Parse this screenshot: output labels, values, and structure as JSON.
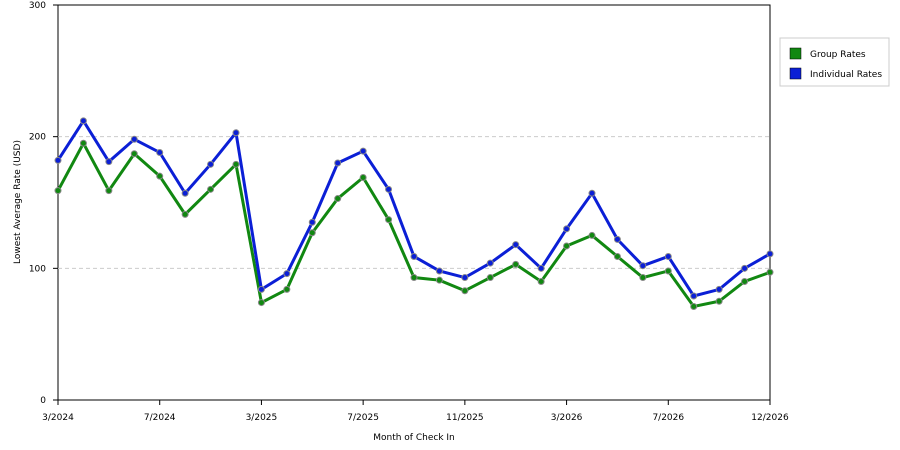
{
  "chart_data": {
    "type": "line",
    "x_label": "Month of Check In",
    "y_label": "Lowest Average Rate (USD)",
    "categories": [
      "3/2024",
      null,
      null,
      null,
      "7/2024",
      null,
      null,
      null,
      "3/2025",
      null,
      null,
      null,
      "7/2025",
      null,
      null,
      null,
      "11/2025",
      null,
      null,
      null,
      "3/2026",
      null,
      null,
      null,
      "7/2026",
      null,
      null,
      null,
      "12/2026"
    ],
    "series": [
      {
        "name": "Group Rates",
        "color": "#118811",
        "values": [
          159,
          195,
          159,
          187,
          170,
          141,
          160,
          179,
          74,
          84,
          127,
          153,
          169,
          137,
          93,
          91,
          83,
          93,
          103,
          90,
          117,
          125,
          109,
          93,
          98,
          71,
          75,
          90,
          97
        ]
      },
      {
        "name": "Individual Rates",
        "color": "#0b1fd6",
        "values": [
          182,
          212,
          181,
          198,
          188,
          157,
          179,
          203,
          84,
          96,
          135,
          180,
          189,
          160,
          109,
          98,
          93,
          104,
          118,
          100,
          130,
          157,
          122,
          102,
          109,
          79,
          84,
          100,
          111
        ]
      }
    ],
    "ylim": [
      0,
      300
    ],
    "yticks": [
      0,
      100,
      200,
      300
    ],
    "grid": true,
    "legend": "top-right"
  }
}
